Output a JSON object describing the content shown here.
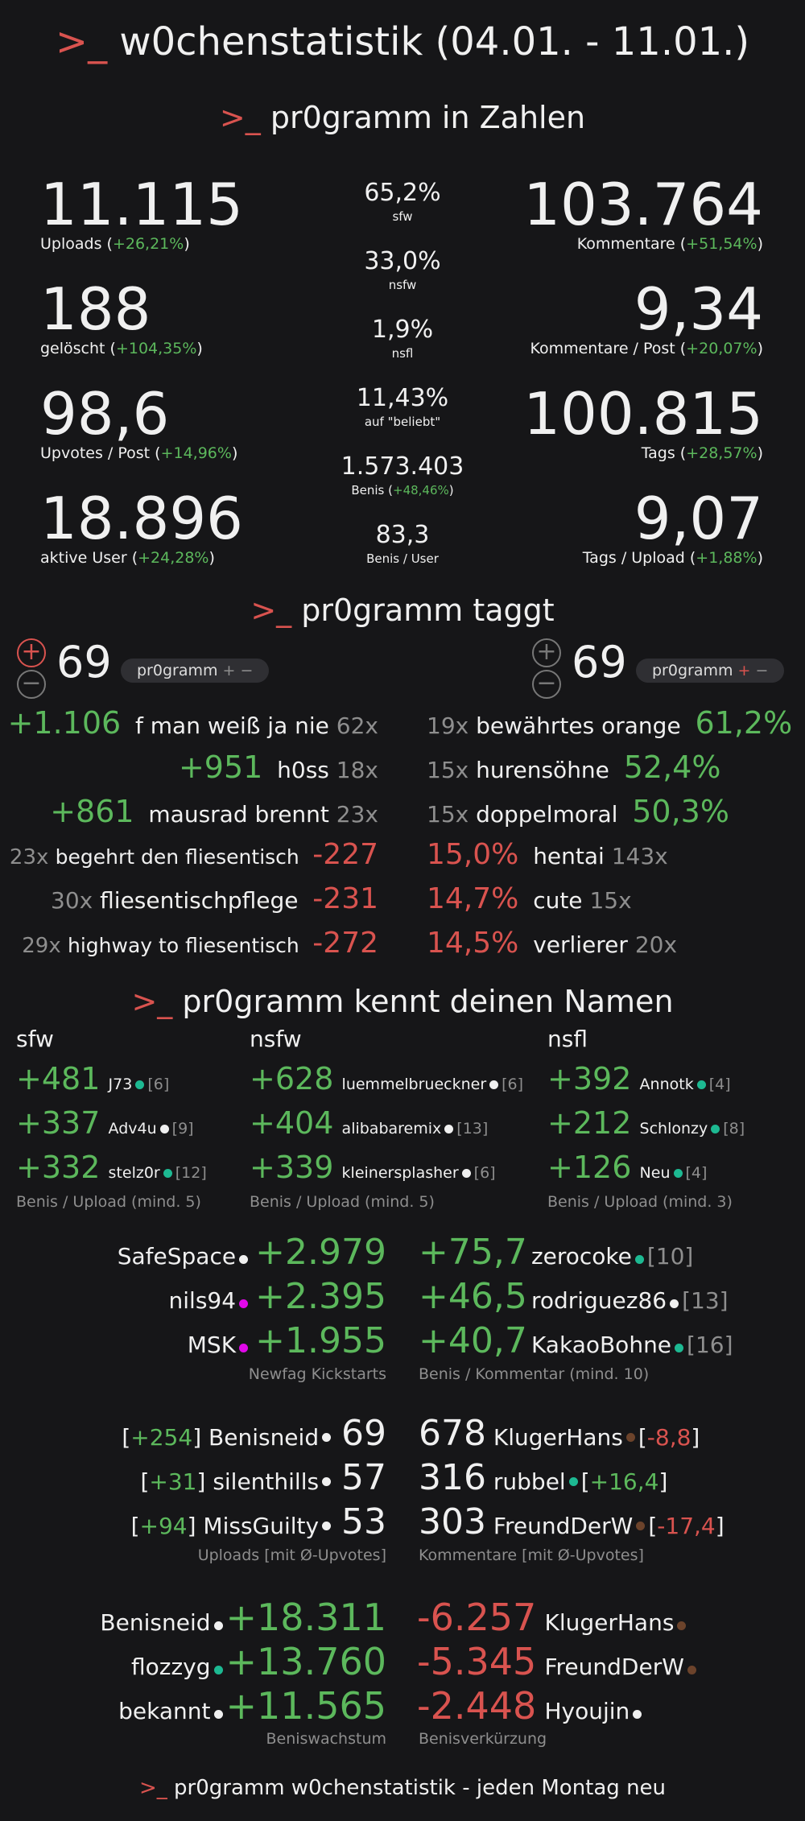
{
  "prompt": ">_",
  "title": "w0chenstatistik (04.01. - 11.01.)",
  "section_zahlen": "pr0gramm in Zahlen",
  "section_taggt": "pr0gramm taggt",
  "section_namen": "pr0gramm kennt deinen Namen",
  "footer": "pr0gramm w0chenstatistik - jeden Montag neu",
  "colors": {
    "green": "#5cb85c",
    "red": "#d9534f",
    "muted": "#8e8e8e",
    "bg": "#161618",
    "dot_white": "#f0f0f0",
    "dot_teal": "#1db992",
    "dot_pink": "#e108e9",
    "dot_brown": "#6c432b"
  },
  "stats": {
    "uploads": {
      "value": "11.115",
      "label": "Uploads (",
      "change": "+26,21%",
      "close": ")"
    },
    "geloescht": {
      "value": "188",
      "label": "gelöscht (",
      "change": "+104,35%",
      "close": ")"
    },
    "upvotes_post": {
      "value": "98,6",
      "label": "Upvotes / Post (",
      "change": "+14,96%",
      "close": ")"
    },
    "aktive_user": {
      "value": "18.896",
      "label": "aktive User (",
      "change": "+24,28%",
      "close": ")"
    },
    "kommentare": {
      "value": "103.764",
      "label": "Kommentare (",
      "change": "+51,54%",
      "close": ")"
    },
    "kommentare_post": {
      "value": "9,34",
      "label": "Kommentare / Post (",
      "change": "+20,07%",
      "close": ")"
    },
    "tags": {
      "value": "100.815",
      "label": "Tags (",
      "change": "+28,57%",
      "close": ")"
    },
    "tags_upload": {
      "value": "9,07",
      "label": "Tags / Upload (",
      "change": "+1,88%",
      "close": ")"
    },
    "sfw": {
      "value": "65,2%",
      "label": "sfw"
    },
    "nsfw": {
      "value": "33,0%",
      "label": "nsfw"
    },
    "nsfl": {
      "value": "1,9%",
      "label": "nsfl"
    },
    "beliebt": {
      "value": "11,43%",
      "label": "auf \"beliebt\""
    },
    "benis": {
      "value": "1.573.403",
      "label": "Benis (",
      "change": "+48,46%",
      "close": ")"
    },
    "benis_user": {
      "value": "83,3",
      "label": "Benis / User"
    }
  },
  "taggt": {
    "left_header": {
      "plus": "+",
      "minus": "−",
      "count": "69",
      "pill": "pr0gramm",
      "pill_plus": "+",
      "pill_minus": "−"
    },
    "right_header": {
      "plus": "+",
      "minus": "−",
      "count": "69",
      "pill": "pr0gramm",
      "pill_plus": "+",
      "pill_minus": "−"
    },
    "left": [
      {
        "score": "+1.106",
        "tag": "f man weiß ja nie",
        "count": "62x"
      },
      {
        "score": "+951",
        "tag": "h0ss",
        "count": "18x"
      },
      {
        "score": "+861",
        "tag": "mausrad brennt",
        "count": "23x"
      },
      {
        "count": "23x",
        "tag": "begehrt den fliesentisch",
        "score": "-227"
      },
      {
        "count": "30x",
        "tag": "fliesentischpflege",
        "score": "-231"
      },
      {
        "count": "29x",
        "tag": "highway to fliesentisch",
        "score": "-272"
      }
    ],
    "right": [
      {
        "count": "19x",
        "tag": "bewährtes orange",
        "pct": "61,2%"
      },
      {
        "count": "15x",
        "tag": "hurensöhne",
        "pct": "52,4%"
      },
      {
        "count": "15x",
        "tag": "doppelmoral",
        "pct": "50,3%"
      },
      {
        "pct": "15,0%",
        "tag": "hentai",
        "count": "143x"
      },
      {
        "pct": "14,7%",
        "tag": "cute",
        "count": "15x"
      },
      {
        "pct": "14,5%",
        "tag": "verlierer",
        "count": "20x"
      }
    ]
  },
  "namen": {
    "sfw": {
      "title": "sfw",
      "caption": "Benis / Upload (mind. 5)",
      "rows": [
        {
          "score": "+481",
          "user": "J73",
          "dot": "teal",
          "n": "[6]"
        },
        {
          "score": "+337",
          "user": "Adv4u",
          "dot": "white",
          "n": "[9]"
        },
        {
          "score": "+332",
          "user": "stelz0r",
          "dot": "teal",
          "n": "[12]"
        }
      ]
    },
    "nsfw": {
      "title": "nsfw",
      "caption": "Benis / Upload (mind. 5)",
      "rows": [
        {
          "score": "+628",
          "user": "luemmelbrueckner",
          "dot": "white",
          "n": "[6]"
        },
        {
          "score": "+404",
          "user": "alibabaremix",
          "dot": "white",
          "n": "[13]"
        },
        {
          "score": "+339",
          "user": "kleinersplasher",
          "dot": "white",
          "n": "[6]"
        }
      ]
    },
    "nsfl": {
      "title": "nsfl",
      "caption": "Benis / Upload (mind. 3)",
      "rows": [
        {
          "score": "+392",
          "user": "Annotk",
          "dot": "teal",
          "n": "[4]"
        },
        {
          "score": "+212",
          "user": "Schlonzy",
          "dot": "teal",
          "n": "[8]"
        },
        {
          "score": "+126",
          "user": "Neu",
          "dot": "teal",
          "n": "[4]"
        }
      ]
    }
  },
  "kickstarts": {
    "caption": "Newfag Kickstarts",
    "rows": [
      {
        "user": "SafeSpace",
        "dot": "white",
        "score": "+2.979"
      },
      {
        "user": "nils94",
        "dot": "pink",
        "score": "+2.395"
      },
      {
        "user": "MSK",
        "dot": "pink",
        "score": "+1.955"
      }
    ]
  },
  "benis_kommentar": {
    "caption": "Benis / Kommentar (mind. 10)",
    "rows": [
      {
        "score": "+75,7",
        "user": "zerocoke",
        "dot": "teal",
        "n": "[10]"
      },
      {
        "score": "+46,5",
        "user": "rodriguez86",
        "dot": "white",
        "n": "[13]"
      },
      {
        "score": "+40,7",
        "user": "KakaoBohne",
        "dot": "teal",
        "n": "[16]"
      }
    ]
  },
  "uploads_rank": {
    "caption": "Uploads [mit Ø-Upvotes]",
    "rows": [
      {
        "avg": "+254",
        "user": "Benisneid",
        "dot": "white",
        "n": "69"
      },
      {
        "avg": "+31",
        "user": "silenthills",
        "dot": "white",
        "n": "57"
      },
      {
        "avg": "+94",
        "user": "MissGuilty",
        "dot": "white",
        "n": "53"
      }
    ]
  },
  "kommentare_rank": {
    "caption": "Kommentare [mit Ø-Upvotes]",
    "rows": [
      {
        "n": "678",
        "user": "KlugerHans",
        "dot": "brown",
        "avg": "-8,8"
      },
      {
        "n": "316",
        "user": "rubbel",
        "dot": "teal",
        "avg": "+16,4"
      },
      {
        "n": "303",
        "user": "FreundDerW",
        "dot": "brown",
        "avg": "-17,4"
      }
    ]
  },
  "wachstum": {
    "caption": "Beniswachstum",
    "rows": [
      {
        "user": "Benisneid",
        "dot": "white",
        "score": "+18.311"
      },
      {
        "user": "flozzyg",
        "dot": "teal",
        "score": "+13.760"
      },
      {
        "user": "bekannt",
        "dot": "white",
        "score": "+11.565"
      }
    ]
  },
  "verkuerzung": {
    "caption": "Benisverkürzung",
    "rows": [
      {
        "score": "-6.257",
        "user": "KlugerHans",
        "dot": "brown"
      },
      {
        "score": "-5.345",
        "user": "FreundDerW",
        "dot": "brown"
      },
      {
        "score": "-2.448",
        "user": "Hyoujin",
        "dot": "white"
      }
    ]
  }
}
